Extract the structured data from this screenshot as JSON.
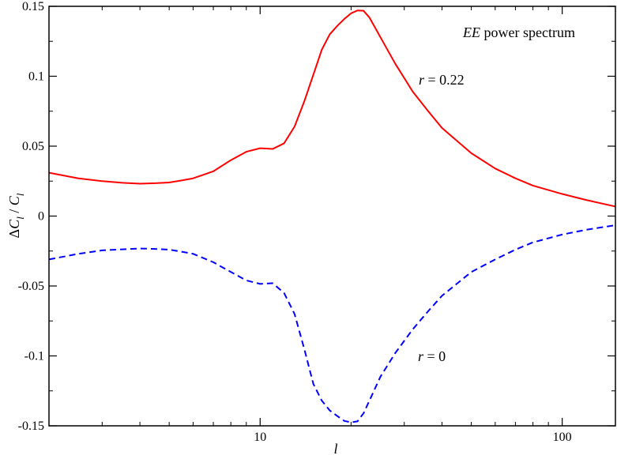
{
  "chart_data": {
    "type": "line",
    "title": "",
    "xlabel": "l",
    "ylabel": {
      "delta": "Δ",
      "c1": "C",
      "sub1": "l",
      "slash": " / ",
      "c2": "C",
      "sub2": "l"
    },
    "xscale": "log",
    "xlim": [
      2,
      150
    ],
    "ylim": [
      -0.15,
      0.15
    ],
    "grid": false,
    "x_ticks": [
      {
        "value": 10,
        "label": "10"
      },
      {
        "value": 100,
        "label": "100"
      }
    ],
    "y_ticks": [
      {
        "value": 0.15,
        "label": "0.15"
      },
      {
        "value": 0.1,
        "label": "0.1"
      },
      {
        "value": 0.05,
        "label": "0.05"
      },
      {
        "value": 0,
        "label": "0"
      },
      {
        "value": -0.05,
        "label": "-0.05"
      },
      {
        "value": -0.1,
        "label": "-0.1"
      },
      {
        "value": -0.15,
        "label": "-0.15"
      }
    ],
    "annotations": {
      "spectrum": {
        "italic": "EE",
        "text": " power spectrum"
      },
      "label_a": {
        "italic": "r",
        "text": " = 0.22"
      },
      "label_b": {
        "italic": "r",
        "text": " = 0"
      }
    },
    "series": [
      {
        "color": "#ff0000",
        "dash": "solid",
        "x": [
          2,
          2.5,
          3,
          3.5,
          4,
          4.5,
          5,
          5.5,
          6,
          7,
          8,
          9,
          10,
          11,
          12,
          13,
          14,
          15,
          16,
          17,
          18,
          19,
          20,
          21,
          22,
          23,
          25,
          28,
          32,
          36,
          40,
          50,
          60,
          70,
          80,
          100,
          120,
          150
        ],
        "values": [
          0.031,
          0.027,
          0.025,
          0.0238,
          0.0232,
          0.0235,
          0.024,
          0.0255,
          0.027,
          0.032,
          0.04,
          0.046,
          0.0485,
          0.048,
          0.052,
          0.064,
          0.082,
          0.101,
          0.119,
          0.13,
          0.136,
          0.141,
          0.145,
          0.147,
          0.1468,
          0.142,
          0.128,
          0.109,
          0.089,
          0.075,
          0.063,
          0.045,
          0.034,
          0.027,
          0.0218,
          0.0158,
          0.0115,
          0.0068
        ]
      },
      {
        "color": "#0000ff",
        "dash": "dashed",
        "x": [
          2,
          2.5,
          3,
          3.5,
          4,
          4.5,
          5,
          5.5,
          6,
          7,
          8,
          9,
          10,
          11,
          12,
          13,
          14,
          15,
          16,
          17,
          18,
          19,
          20,
          21,
          22,
          23,
          25,
          28,
          32,
          36,
          40,
          50,
          60,
          70,
          80,
          100,
          120,
          150
        ],
        "values": [
          -0.031,
          -0.027,
          -0.0245,
          -0.0238,
          -0.0232,
          -0.0235,
          -0.024,
          -0.0255,
          -0.027,
          -0.033,
          -0.04,
          -0.046,
          -0.0485,
          -0.048,
          -0.055,
          -0.07,
          -0.095,
          -0.12,
          -0.132,
          -0.139,
          -0.143,
          -0.1465,
          -0.1475,
          -0.1468,
          -0.141,
          -0.132,
          -0.115,
          -0.098,
          -0.081,
          -0.068,
          -0.057,
          -0.04,
          -0.031,
          -0.024,
          -0.0188,
          -0.0132,
          -0.0098,
          -0.0065
        ]
      }
    ]
  }
}
